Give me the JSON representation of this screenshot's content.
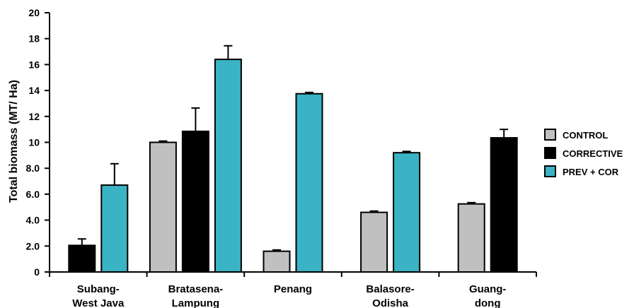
{
  "chart_data": {
    "type": "bar",
    "title": "",
    "xlabel": "",
    "ylabel": "Total biomass (MT/ Ha)",
    "ylim": [
      0,
      20
    ],
    "yticks": [
      "0",
      "2.0",
      "4.0",
      "6.0",
      "8.0",
      "10",
      "12",
      "14",
      "16",
      "18",
      "20"
    ],
    "grid": false,
    "legend_position": "right",
    "categories": [
      {
        "lines": [
          "Subang-",
          "West Java"
        ]
      },
      {
        "lines": [
          "Bratasena-",
          "Lampung"
        ]
      },
      {
        "lines": [
          "Penang"
        ]
      },
      {
        "lines": [
          "Balasore-",
          "Odisha"
        ]
      },
      {
        "lines": [
          "Guang-",
          "dong"
        ]
      }
    ],
    "series": [
      {
        "name": "CONTROL",
        "color": "#c0c0c0",
        "values": [
          null,
          10.0,
          1.6,
          4.6,
          5.25
        ],
        "errors": [
          null,
          0.1,
          0.1,
          0.1,
          0.1
        ]
      },
      {
        "name": "CORRECTIVE",
        "color": "#000000",
        "values": [
          2.05,
          10.85,
          null,
          null,
          10.35
        ],
        "errors": [
          0.5,
          1.8,
          null,
          null,
          0.65
        ]
      },
      {
        "name": "PREV + COR",
        "color": "#3ab3c4",
        "values": [
          6.7,
          16.4,
          13.75,
          9.2,
          null
        ],
        "errors": [
          1.65,
          1.05,
          0.1,
          0.1,
          null
        ]
      }
    ]
  }
}
